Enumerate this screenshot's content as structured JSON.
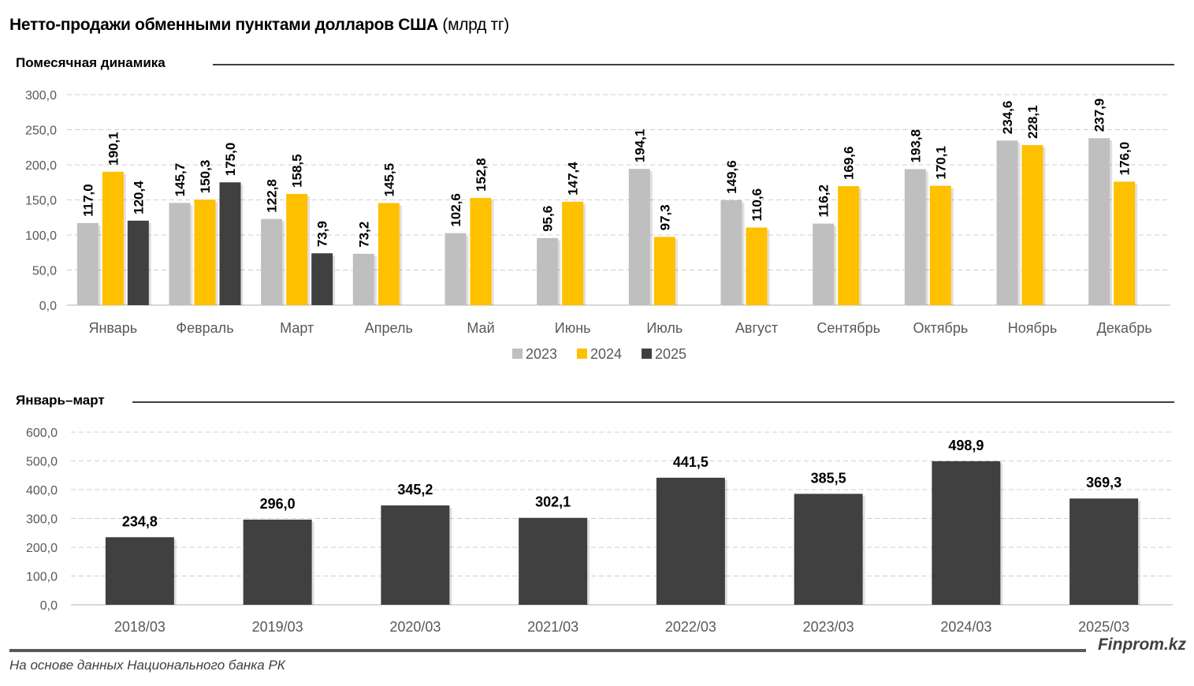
{
  "title": "Нетто-продажи обменными пунктами долларов США",
  "title_unit": "(млрд тг)",
  "footer": {
    "source": "На основе данных Национального банка РК",
    "brand": "Finprom.kz"
  },
  "chart_data": [
    {
      "type": "bar",
      "title": "Помесячная динамика",
      "xlabel": "",
      "ylabel": "",
      "ylim": [
        0,
        300
      ],
      "yticks": [
        "0,0",
        "50,0",
        "100,0",
        "150,0",
        "200,0",
        "250,0",
        "300,0"
      ],
      "ytick_values": [
        0,
        50,
        100,
        150,
        200,
        250,
        300
      ],
      "grid": true,
      "legend": "bottom",
      "categories": [
        "Январь",
        "Февраль",
        "Март",
        "Апрель",
        "Май",
        "Июнь",
        "Июль",
        "Август",
        "Сентябрь",
        "Октябрь",
        "Ноябрь",
        "Декабрь"
      ],
      "series": [
        {
          "name": "2023",
          "color": "#bfbfbf",
          "values": [
            117.0,
            145.7,
            122.8,
            73.2,
            102.6,
            95.6,
            194.1,
            149.6,
            116.2,
            193.8,
            234.6,
            237.9
          ],
          "labels": [
            "117,0",
            "145,7",
            "122,8",
            "73,2",
            "102,6",
            "95,6",
            "194,1",
            "149,6",
            "116,2",
            "193,8",
            "234,6",
            "237,9"
          ]
        },
        {
          "name": "2024",
          "color": "#ffc000",
          "values": [
            190.1,
            150.3,
            158.5,
            145.5,
            152.8,
            147.4,
            97.3,
            110.6,
            169.6,
            170.1,
            228.1,
            176.0
          ],
          "labels": [
            "190,1",
            "150,3",
            "158,5",
            "145,5",
            "152,8",
            "147,4",
            "97,3",
            "110,6",
            "169,6",
            "170,1",
            "228,1",
            "176,0"
          ]
        },
        {
          "name": "2025",
          "color": "#404040",
          "values": [
            120.4,
            175.0,
            73.9,
            null,
            null,
            null,
            null,
            null,
            null,
            null,
            null,
            null
          ],
          "labels": [
            "120,4",
            "175,0",
            "73,9",
            null,
            null,
            null,
            null,
            null,
            null,
            null,
            null,
            null
          ]
        }
      ]
    },
    {
      "type": "bar",
      "title": "Январь–март",
      "xlabel": "",
      "ylabel": "",
      "ylim": [
        0,
        600
      ],
      "yticks": [
        "0,0",
        "100,0",
        "200,0",
        "300,0",
        "400,0",
        "500,0",
        "600,0"
      ],
      "ytick_values": [
        0,
        100,
        200,
        300,
        400,
        500,
        600
      ],
      "grid": true,
      "legend": "none",
      "categories": [
        "2018/03",
        "2019/03",
        "2020/03",
        "2021/03",
        "2022/03",
        "2023/03",
        "2024/03",
        "2025/03"
      ],
      "series": [
        {
          "name": "Январь–март",
          "color": "#404040",
          "values": [
            234.8,
            296.0,
            345.2,
            302.1,
            441.5,
            385.5,
            498.9,
            369.3
          ],
          "labels": [
            "234,8",
            "296,0",
            "345,2",
            "302,1",
            "441,5",
            "385,5",
            "498,9",
            "369,3"
          ]
        }
      ]
    }
  ]
}
